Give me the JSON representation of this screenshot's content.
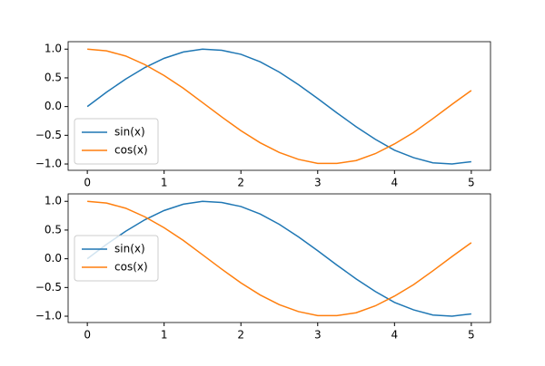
{
  "chart_data": [
    {
      "type": "line",
      "x": [
        0,
        0.25,
        0.5,
        0.75,
        1,
        1.25,
        1.5,
        1.75,
        2,
        2.25,
        2.5,
        2.75,
        3,
        3.25,
        3.5,
        3.75,
        4,
        4.25,
        4.5,
        4.75,
        5
      ],
      "series": [
        {
          "name": "sin(x)",
          "color": "#1f77b4",
          "values": [
            0,
            0.25,
            0.48,
            0.68,
            0.84,
            0.95,
            1.0,
            0.98,
            0.91,
            0.78,
            0.6,
            0.38,
            0.14,
            -0.11,
            -0.35,
            -0.57,
            -0.76,
            -0.89,
            -0.98,
            -1.0,
            -0.96
          ]
        },
        {
          "name": "cos(x)",
          "color": "#ff7f0e",
          "values": [
            1,
            0.97,
            0.88,
            0.73,
            0.54,
            0.32,
            0.07,
            -0.18,
            -0.42,
            -0.63,
            -0.8,
            -0.92,
            -0.99,
            -0.99,
            -0.94,
            -0.82,
            -0.65,
            -0.45,
            -0.21,
            0.04,
            0.28
          ]
        }
      ],
      "xlim": [
        -0.25,
        5.25
      ],
      "xticks": [
        0,
        1,
        2,
        3,
        4,
        5
      ],
      "ylim": [
        -1.11,
        1.13
      ],
      "yticks": [
        {
          "value": -1.0,
          "label": "−1.0"
        },
        {
          "value": -0.5,
          "label": "−0.5"
        },
        {
          "value": 0.0,
          "label": "0.0"
        },
        {
          "value": 0.5,
          "label": "0.5"
        },
        {
          "value": 1.0,
          "label": "1.0"
        }
      ],
      "legend": "lower left"
    },
    {
      "type": "line",
      "x": [
        0,
        0.25,
        0.5,
        0.75,
        1,
        1.25,
        1.5,
        1.75,
        2,
        2.25,
        2.5,
        2.75,
        3,
        3.25,
        3.5,
        3.75,
        4,
        4.25,
        4.5,
        4.75,
        5
      ],
      "series": [
        {
          "name": "sin(x)",
          "color": "#1f77b4",
          "values": [
            0,
            0.25,
            0.48,
            0.68,
            0.84,
            0.95,
            1.0,
            0.98,
            0.91,
            0.78,
            0.6,
            0.38,
            0.14,
            -0.11,
            -0.35,
            -0.57,
            -0.76,
            -0.89,
            -0.98,
            -1.0,
            -0.96
          ]
        },
        {
          "name": "cos(x)",
          "color": "#ff7f0e",
          "values": [
            1,
            0.97,
            0.88,
            0.73,
            0.54,
            0.32,
            0.07,
            -0.18,
            -0.42,
            -0.63,
            -0.8,
            -0.92,
            -0.99,
            -0.99,
            -0.94,
            -0.82,
            -0.65,
            -0.45,
            -0.21,
            0.04,
            0.28
          ]
        }
      ],
      "xlim": [
        -0.25,
        5.25
      ],
      "xticks": [
        0,
        1,
        2,
        3,
        4,
        5
      ],
      "ylim": [
        -1.11,
        1.13
      ],
      "yticks": [
        {
          "value": -1.0,
          "label": "−1.0"
        },
        {
          "value": -0.5,
          "label": "−0.5"
        },
        {
          "value": 0.0,
          "label": "0.0"
        },
        {
          "value": 0.5,
          "label": "0.5"
        },
        {
          "value": 1.0,
          "label": "1.0"
        }
      ],
      "legend": "center left"
    }
  ]
}
